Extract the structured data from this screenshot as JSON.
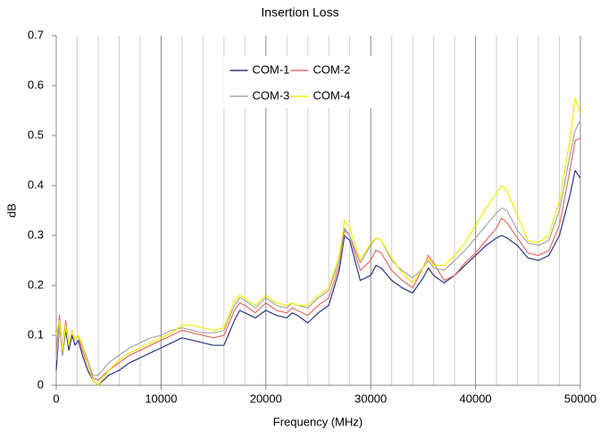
{
  "chart_data": {
    "type": "line",
    "title": "Insertion Loss",
    "x_label": "Frequency (MHz)",
    "y_label": "dB",
    "x": [
      0,
      300,
      600,
      900,
      1200,
      1500,
      1800,
      2100,
      2500,
      3000,
      3500,
      4000,
      5000,
      6000,
      7000,
      8000,
      9000,
      10000,
      11000,
      12000,
      13000,
      14000,
      15000,
      16000,
      17000,
      17500,
      18000,
      19000,
      20000,
      21000,
      22000,
      22500,
      23000,
      24000,
      25000,
      26000,
      27000,
      27500,
      28000,
      29000,
      30000,
      30500,
      31000,
      32000,
      33000,
      34000,
      35000,
      35500,
      36000,
      37000,
      38000,
      39000,
      40000,
      41000,
      42000,
      42500,
      43000,
      44000,
      45000,
      46000,
      47000,
      48000,
      49000,
      49500,
      50000
    ],
    "series": [
      {
        "name": "COM-1",
        "color": "#2e3580",
        "values": [
          0.03,
          0.12,
          0.06,
          0.11,
          0.07,
          0.1,
          0.08,
          0.09,
          0.06,
          0.03,
          0.01,
          0.0,
          0.02,
          0.03,
          0.045,
          0.055,
          0.065,
          0.075,
          0.085,
          0.095,
          0.09,
          0.085,
          0.08,
          0.08,
          0.13,
          0.15,
          0.145,
          0.135,
          0.15,
          0.14,
          0.135,
          0.145,
          0.14,
          0.125,
          0.145,
          0.16,
          0.23,
          0.3,
          0.29,
          0.21,
          0.22,
          0.24,
          0.235,
          0.21,
          0.195,
          0.185,
          0.215,
          0.235,
          0.22,
          0.205,
          0.22,
          0.24,
          0.26,
          0.28,
          0.295,
          0.3,
          0.295,
          0.28,
          0.255,
          0.25,
          0.26,
          0.3,
          0.38,
          0.43,
          0.415
        ]
      },
      {
        "name": "COM-2",
        "color": "#e86a6a",
        "values": [
          0.06,
          0.14,
          0.07,
          0.13,
          0.08,
          0.11,
          0.09,
          0.1,
          0.07,
          0.04,
          0.015,
          0.01,
          0.03,
          0.045,
          0.06,
          0.07,
          0.08,
          0.09,
          0.1,
          0.11,
          0.105,
          0.1,
          0.095,
          0.1,
          0.15,
          0.165,
          0.16,
          0.145,
          0.165,
          0.15,
          0.145,
          0.155,
          0.15,
          0.14,
          0.16,
          0.175,
          0.24,
          0.31,
          0.3,
          0.23,
          0.25,
          0.27,
          0.265,
          0.23,
          0.21,
          0.195,
          0.235,
          0.26,
          0.245,
          0.21,
          0.22,
          0.245,
          0.265,
          0.29,
          0.315,
          0.335,
          0.325,
          0.295,
          0.265,
          0.26,
          0.27,
          0.32,
          0.43,
          0.49,
          0.495
        ]
      },
      {
        "name": "COM-3",
        "color": "#a6a6a6",
        "values": [
          0.05,
          0.12,
          0.06,
          0.12,
          0.08,
          0.11,
          0.09,
          0.1,
          0.08,
          0.05,
          0.02,
          0.02,
          0.045,
          0.06,
          0.075,
          0.085,
          0.095,
          0.1,
          0.11,
          0.115,
          0.11,
          0.105,
          0.105,
          0.11,
          0.16,
          0.175,
          0.17,
          0.155,
          0.175,
          0.16,
          0.155,
          0.165,
          0.16,
          0.155,
          0.175,
          0.19,
          0.25,
          0.315,
          0.3,
          0.245,
          0.28,
          0.295,
          0.29,
          0.25,
          0.23,
          0.215,
          0.235,
          0.25,
          0.235,
          0.23,
          0.25,
          0.27,
          0.295,
          0.32,
          0.345,
          0.355,
          0.35,
          0.31,
          0.285,
          0.28,
          0.29,
          0.35,
          0.46,
          0.51,
          0.53
        ]
      },
      {
        "name": "COM-4",
        "color": "#f2ee00",
        "values": [
          0.1,
          0.13,
          0.07,
          0.12,
          0.08,
          0.11,
          0.09,
          0.1,
          0.08,
          0.04,
          0.01,
          0.0,
          0.03,
          0.05,
          0.065,
          0.075,
          0.085,
          0.095,
          0.105,
          0.12,
          0.12,
          0.115,
          0.11,
          0.115,
          0.17,
          0.18,
          0.175,
          0.16,
          0.18,
          0.165,
          0.16,
          0.165,
          0.16,
          0.16,
          0.18,
          0.195,
          0.26,
          0.33,
          0.315,
          0.25,
          0.285,
          0.295,
          0.29,
          0.255,
          0.225,
          0.205,
          0.235,
          0.255,
          0.24,
          0.24,
          0.26,
          0.285,
          0.32,
          0.355,
          0.385,
          0.4,
          0.39,
          0.34,
          0.29,
          0.285,
          0.3,
          0.37,
          0.49,
          0.575,
          0.545
        ]
      }
    ],
    "xlim": [
      0,
      50000
    ],
    "xticks": [
      0,
      10000,
      20000,
      30000,
      40000,
      50000
    ],
    "ylim": [
      0,
      0.7
    ],
    "yticks": [
      0,
      0.1,
      0.2,
      0.3,
      0.4,
      0.5,
      0.6,
      0.7
    ],
    "x_grid": true,
    "minor_grid_divisions": 5,
    "legend": "top-center"
  }
}
